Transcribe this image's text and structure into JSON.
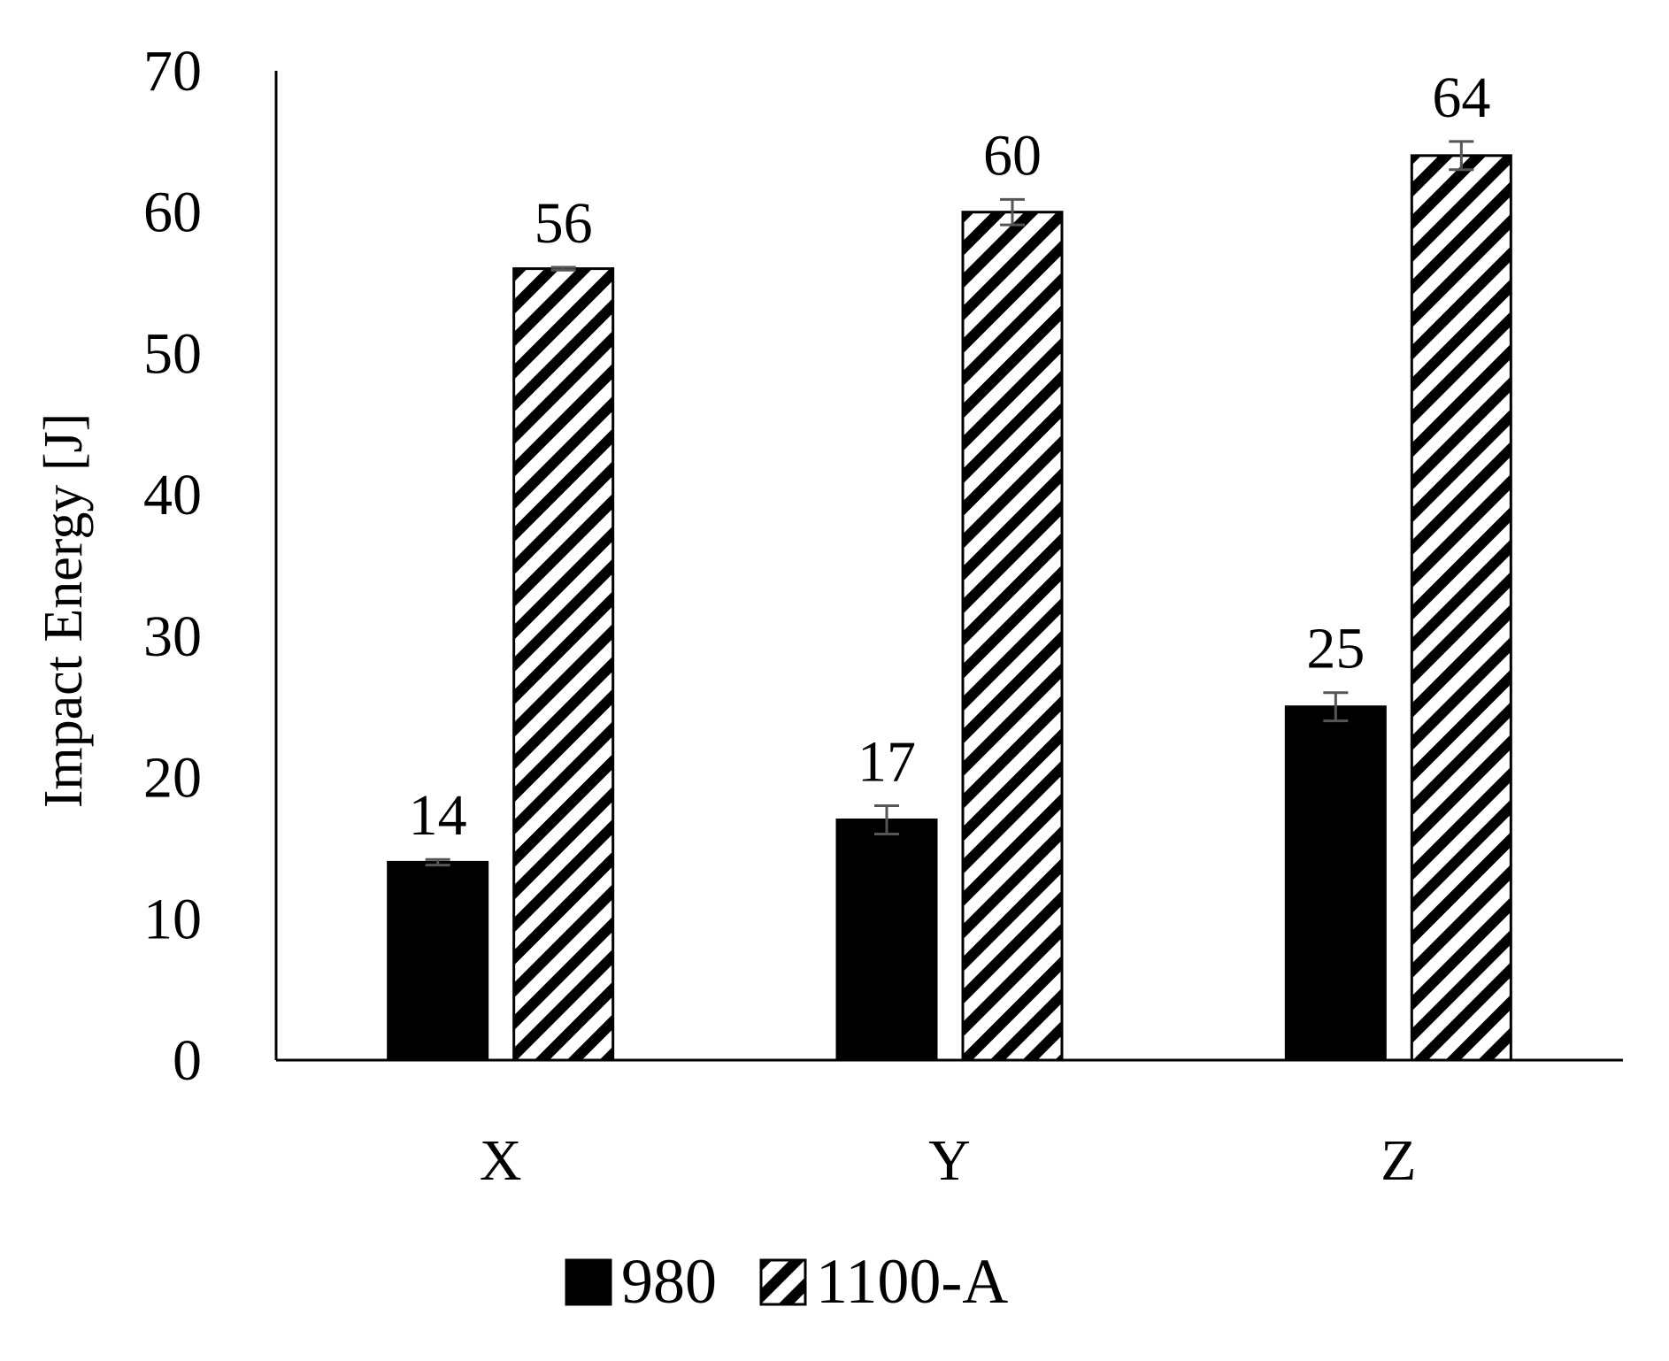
{
  "chart_data": {
    "type": "bar",
    "title": "",
    "xlabel": "",
    "ylabel": "Impact Energy [J]",
    "ylim": [
      0,
      70
    ],
    "yticks": [
      "0",
      "10",
      "20",
      "30",
      "40",
      "50",
      "60",
      "70"
    ],
    "categories": [
      "X",
      "Y",
      "Z"
    ],
    "series": [
      {
        "name": "980",
        "values": [
          14,
          17,
          25
        ],
        "error": [
          0.2,
          1.0,
          1.0
        ],
        "data_labels": [
          "14",
          "17",
          "25"
        ],
        "fill": "solid",
        "color": "#000000"
      },
      {
        "name": "1100-A",
        "values": [
          56,
          60,
          64
        ],
        "error": [
          0.1,
          0.9,
          1.0
        ],
        "data_labels": [
          "56",
          "60",
          "64"
        ],
        "fill": "diagonal-hatch",
        "color": "#000000"
      }
    ],
    "grid": false,
    "legend": "bottom-center",
    "colors": {
      "bar": "#000000",
      "error_bar": "#555555",
      "background": "#ffffff"
    }
  }
}
